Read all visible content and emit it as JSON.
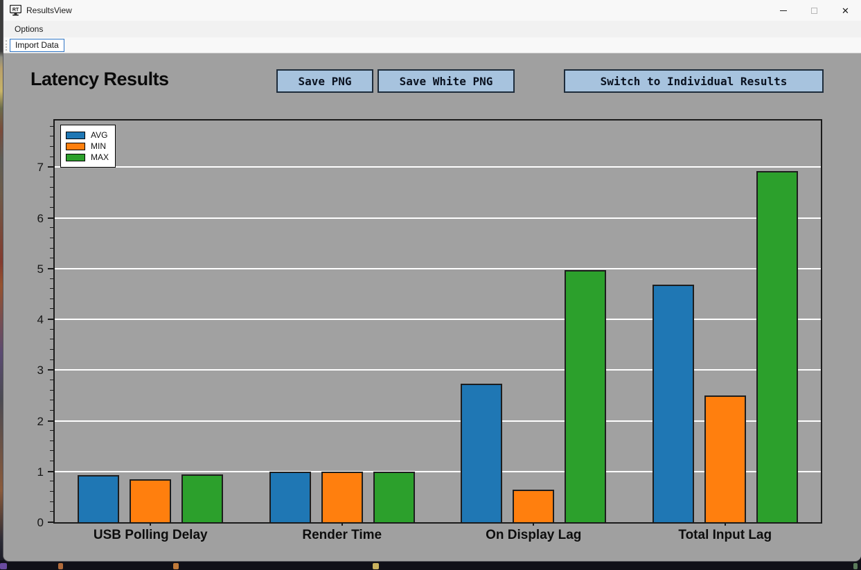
{
  "window": {
    "title": "ResultsView",
    "app_icon_text": "RT",
    "close_icon": "✕"
  },
  "menu": {
    "options_label": "Options"
  },
  "toolbar": {
    "import_button_label": "Import Data"
  },
  "page": {
    "heading": "Latency Results",
    "save_png_label": "Save PNG",
    "save_white_png_label": "Save White PNG",
    "switch_label": "Switch to Individual Results"
  },
  "colors": {
    "client_background": "#a0a0a0",
    "button_background": "#a7c3de",
    "button_border": "#1d2b3a",
    "avg": "#1f77b4",
    "min": "#ff7f0e",
    "max": "#2ca02c",
    "gridline": "#ffffff",
    "spine": "#1a1a1a"
  },
  "chart_data": {
    "type": "bar",
    "title": "",
    "xlabel": "",
    "ylabel": "",
    "categories": [
      "USB Polling Delay",
      "Render Time",
      "On Display Lag",
      "Total Input Lag"
    ],
    "series": [
      {
        "name": "AVG",
        "color": "#1f77b4",
        "values": [
          0.93,
          1.0,
          2.73,
          4.68
        ]
      },
      {
        "name": "MIN",
        "color": "#ff7f0e",
        "values": [
          0.85,
          1.0,
          0.64,
          2.5
        ]
      },
      {
        "name": "MAX",
        "color": "#2ca02c",
        "values": [
          0.94,
          1.0,
          4.97,
          6.93
        ]
      }
    ],
    "ylim": [
      0,
      7.92
    ],
    "yticks": [
      0,
      1,
      2,
      3,
      4,
      5,
      6,
      7
    ],
    "minor_tick_step": 0.2,
    "grid": true,
    "legend_position": "upper-left"
  }
}
